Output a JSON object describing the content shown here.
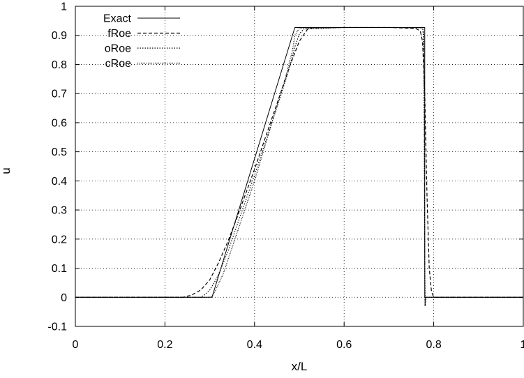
{
  "chart_data": {
    "type": "line",
    "title": "",
    "xlabel": "x/L",
    "ylabel": "u",
    "xlim": [
      0,
      1
    ],
    "ylim": [
      -0.1,
      1
    ],
    "xticks": [
      "0",
      "0.2",
      "0.4",
      "0.6",
      "0.8",
      "1"
    ],
    "yticks": [
      "-0.1",
      "0",
      "0.1",
      "0.2",
      "0.3",
      "0.4",
      "0.5",
      "0.6",
      "0.7",
      "0.8",
      "0.9",
      "1"
    ],
    "grid": true,
    "legend": "top-left",
    "series": [
      {
        "name": "Exact",
        "style": "solid",
        "x": [
          0.0,
          0.305,
          0.49,
          0.78,
          0.78,
          1.0
        ],
        "y": [
          0.0,
          0.0,
          0.927,
          0.927,
          0.0,
          0.0
        ]
      },
      {
        "name": "fRoe",
        "style": "dashed",
        "x": [
          0.0,
          0.24,
          0.26,
          0.28,
          0.3,
          0.32,
          0.34,
          0.36,
          0.4,
          0.44,
          0.48,
          0.49,
          0.5,
          0.52,
          0.6,
          0.7,
          0.76,
          0.77,
          0.775,
          0.78,
          0.785,
          0.79,
          0.795,
          0.8,
          1.0
        ],
        "y": [
          0.0,
          0.0,
          0.008,
          0.025,
          0.06,
          0.12,
          0.19,
          0.27,
          0.44,
          0.62,
          0.8,
          0.84,
          0.88,
          0.925,
          0.927,
          0.927,
          0.924,
          0.915,
          0.88,
          0.7,
          0.35,
          0.1,
          0.02,
          0.0,
          0.0
        ]
      },
      {
        "name": "oRoe",
        "style": "dotted",
        "x": [
          0.0,
          0.28,
          0.29,
          0.3,
          0.31,
          0.32,
          0.34,
          0.4,
          0.46,
          0.48,
          0.49,
          0.5,
          0.51,
          0.6,
          0.7,
          0.772,
          0.776,
          0.778,
          0.779,
          0.78,
          0.781,
          0.782,
          0.784,
          1.0
        ],
        "y": [
          0.0,
          0.0,
          0.01,
          0.025,
          0.05,
          0.08,
          0.155,
          0.42,
          0.7,
          0.8,
          0.86,
          0.905,
          0.922,
          0.927,
          0.927,
          0.926,
          0.92,
          0.85,
          0.5,
          0.1,
          -0.03,
          -0.01,
          0.0,
          0.0
        ]
      },
      {
        "name": "cRoe",
        "style": "loosely-dotted",
        "x": [
          0.0,
          0.3,
          0.305,
          0.31,
          0.33,
          0.4,
          0.47,
          0.485,
          0.49,
          0.5,
          0.6,
          0.7,
          0.775,
          0.778,
          0.779,
          0.78,
          0.7805,
          0.781,
          0.782,
          1.0
        ],
        "y": [
          0.0,
          0.0,
          0.003,
          0.015,
          0.08,
          0.4,
          0.76,
          0.85,
          0.9,
          0.925,
          0.927,
          0.927,
          0.926,
          0.9,
          0.6,
          0.15,
          -0.03,
          -0.01,
          0.0,
          0.0
        ]
      }
    ]
  }
}
